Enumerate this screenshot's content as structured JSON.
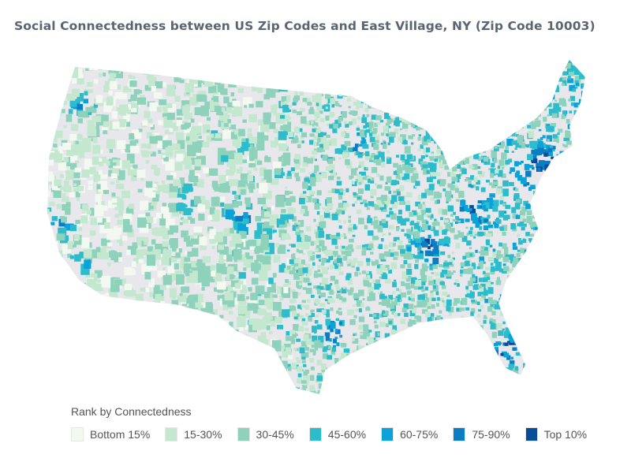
{
  "title": "Social Connectedness between US Zip Codes and East Village, NY (Zip Code 10003)",
  "map": {
    "no_data_color": "#e8e8ec"
  },
  "legend": {
    "title": "Rank by Connectedness",
    "items": [
      {
        "label": "Bottom 15%",
        "color": "#f3f9f1"
      },
      {
        "label": "15-30%",
        "color": "#c4e7cf"
      },
      {
        "label": "30-45%",
        "color": "#8ed2bb"
      },
      {
        "label": "45-60%",
        "color": "#2cbccb"
      },
      {
        "label": "60-75%",
        "color": "#0aa2d8"
      },
      {
        "label": "75-90%",
        "color": "#0a7dc3"
      },
      {
        "label": "Top 10%",
        "color": "#0a4b9c"
      }
    ]
  }
}
